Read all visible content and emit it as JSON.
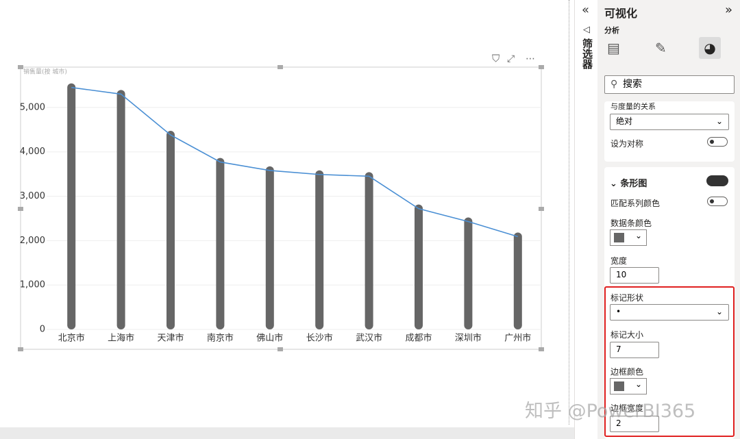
{
  "chart_data": {
    "type": "bar",
    "title": "销售量(按 城市)",
    "categories": [
      "北京市",
      "上海市",
      "天津市",
      "南京市",
      "佛山市",
      "长沙市",
      "武汉市",
      "成都市",
      "深圳市",
      "广州市"
    ],
    "values": [
      5450,
      5300,
      4380,
      3770,
      3580,
      3490,
      3450,
      2720,
      2430,
      2090
    ],
    "color": "#666666",
    "line_color": "#4a8fd4",
    "line_overlay": true,
    "ylim": [
      0,
      5800
    ],
    "yticks": [
      0,
      {
        "value": 1000,
        "label": "1,000"
      },
      {
        "value": 2000,
        "label": "2,000"
      },
      {
        "value": 3000,
        "label": "3,000"
      },
      {
        "value": 4000,
        "label": "4,000"
      },
      {
        "value": 5000,
        "label": "5,000"
      }
    ],
    "grid": true
  },
  "filter_pane": "筛选器",
  "panel": {
    "title": "可视化",
    "tab": "分析",
    "search": "搜索",
    "relation_label": "与度量的关系",
    "relation_value": "绝对",
    "symmetric": "设为对称",
    "section": "条形图",
    "match_color": "匹配系列颜色",
    "bar_color": "数据条颜色",
    "width_label": "宽度",
    "width_value": 10,
    "marker_shape_label": "标记形状",
    "marker_shape": "•",
    "marker_size_label": "标记大小",
    "marker_size": 7,
    "border_color_label": "边框颜色",
    "border_width_label": "边框宽度",
    "border_width": 2
  },
  "watermark": "知乎 @PowerBI365"
}
